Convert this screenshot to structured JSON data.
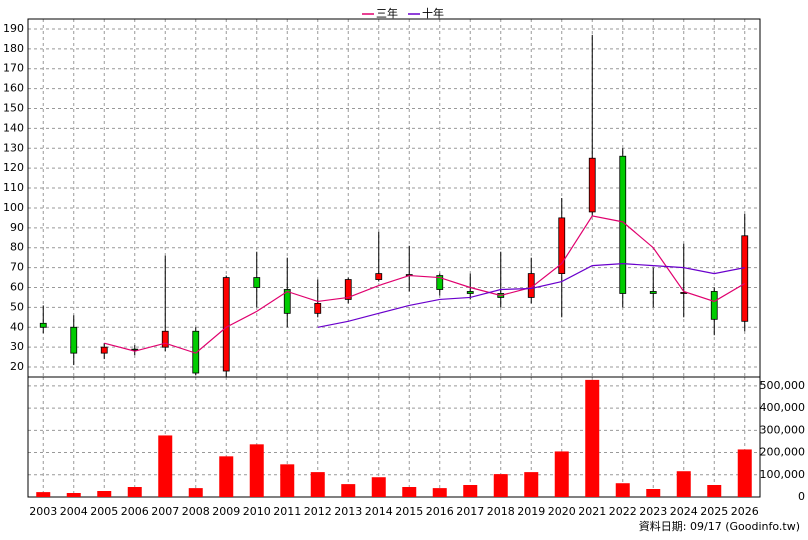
{
  "chart_data": [
    {
      "type": "candlestick",
      "categories": [
        "2003",
        "2004",
        "2005",
        "2006",
        "2007",
        "2008",
        "2009",
        "2010",
        "2011",
        "2012",
        "2013",
        "2014",
        "2015",
        "2016",
        "2017",
        "2018",
        "2019",
        "2020",
        "2021",
        "2022",
        "2023",
        "2024",
        "2025",
        "2026"
      ],
      "open": [
        42,
        40,
        27,
        29,
        30,
        38,
        18,
        65,
        59,
        47,
        54,
        64,
        66,
        66,
        58,
        57,
        55,
        67,
        98,
        126,
        58,
        57,
        58,
        43
      ],
      "high": [
        51,
        46,
        32,
        31,
        76,
        40,
        66,
        78,
        75,
        64,
        65,
        88,
        81,
        67,
        67,
        78,
        75,
        105,
        187,
        130,
        70,
        82,
        60,
        97
      ],
      "low": [
        37,
        21,
        24,
        26,
        28,
        16,
        15,
        50,
        40,
        45,
        52,
        63,
        58,
        56,
        54,
        50,
        52,
        45,
        96,
        50,
        50,
        45,
        36,
        38
      ],
      "close": [
        40,
        27,
        30,
        28.5,
        38,
        17,
        65,
        60,
        47,
        52,
        64,
        67,
        66.5,
        59,
        57,
        55,
        67,
        95,
        125,
        57,
        57,
        57.5,
        44,
        86
      ],
      "up_color": "#ff0000",
      "down_color": "#00cc00",
      "series": [
        {
          "name": "三年",
          "color": "#e0006e",
          "values": [
            null,
            null,
            32,
            28,
            32,
            27,
            40,
            48,
            58,
            53,
            55,
            61,
            66,
            65,
            60,
            56,
            60,
            72,
            96,
            93,
            80,
            58,
            53,
            62
          ]
        },
        {
          "name": "十年",
          "color": "#6a00cc",
          "values": [
            null,
            null,
            null,
            null,
            null,
            null,
            null,
            null,
            null,
            40,
            43,
            47,
            51,
            54,
            55,
            59,
            59.5,
            63,
            71,
            72,
            71,
            70,
            67,
            70
          ]
        }
      ],
      "ylim": [
        15,
        195
      ],
      "yticks": [
        20,
        30,
        40,
        50,
        60,
        70,
        80,
        90,
        100,
        110,
        120,
        130,
        140,
        150,
        160,
        170,
        180,
        190
      ],
      "grid": true,
      "legend": "top"
    },
    {
      "type": "bar",
      "values": [
        22000,
        18000,
        27000,
        45000,
        277000,
        40000,
        183000,
        237000,
        147000,
        112000,
        58000,
        89000,
        45000,
        40000,
        54000,
        103000,
        112000,
        205000,
        527000,
        62000,
        36000,
        116000,
        54000,
        214000
      ],
      "color": "#ff0000",
      "ylim": [
        0,
        540000
      ],
      "yticks": [
        0,
        {
          "value": 100000,
          "label": "100,000"
        },
        {
          "value": 200000,
          "label": "200,000"
        },
        {
          "value": 300000,
          "label": "300,000"
        },
        {
          "value": 400000,
          "label": "400,000"
        },
        {
          "value": 500000,
          "label": "500,000"
        }
      ],
      "grid": true
    }
  ],
  "footer": "資料日期: 09/17 (Goodinfo.tw)"
}
